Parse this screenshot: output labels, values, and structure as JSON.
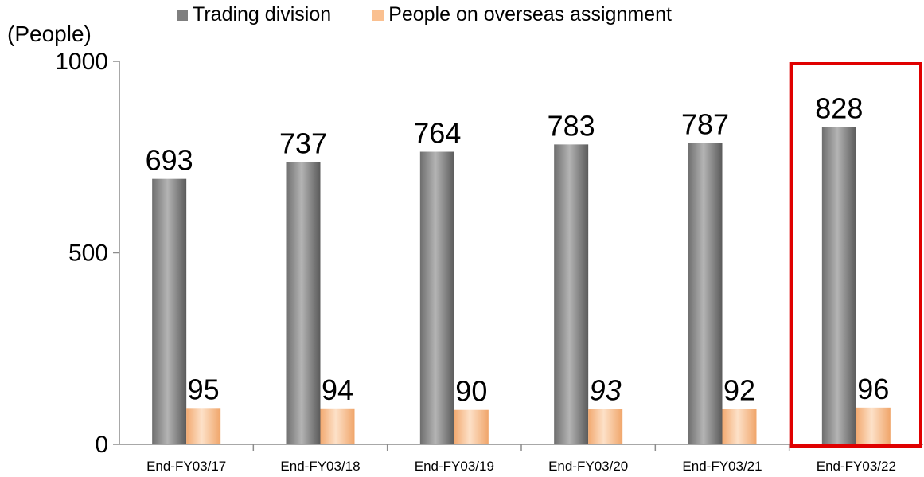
{
  "chart_data": {
    "type": "bar",
    "ylabel": "(People)",
    "ylim": [
      0,
      1000
    ],
    "yticks": [
      0,
      500,
      1000
    ],
    "categories": [
      "End-FY03/17",
      "End-FY03/18",
      "End-FY03/19",
      "End-FY03/20",
      "End-FY03/21",
      "End-FY03/22"
    ],
    "series": [
      {
        "name": "Trading division",
        "values": [
          693,
          737,
          764,
          783,
          787,
          828
        ],
        "labels": [
          "693",
          "737",
          "764",
          "783",
          "787",
          "828"
        ],
        "color": "#7f7f7f"
      },
      {
        "name": "People on overseas assignment",
        "values": [
          95,
          94,
          90,
          93,
          92,
          96
        ],
        "labels": [
          "95",
          "94",
          "90",
          "93",
          "92",
          "96"
        ],
        "color": "#fac090"
      }
    ],
    "highlight": {
      "category": "End-FY03/22",
      "color": "#e00000"
    },
    "italic_labels": [
      {
        "series": 1,
        "index": 3
      }
    ],
    "legend": "top",
    "grid": false
  }
}
